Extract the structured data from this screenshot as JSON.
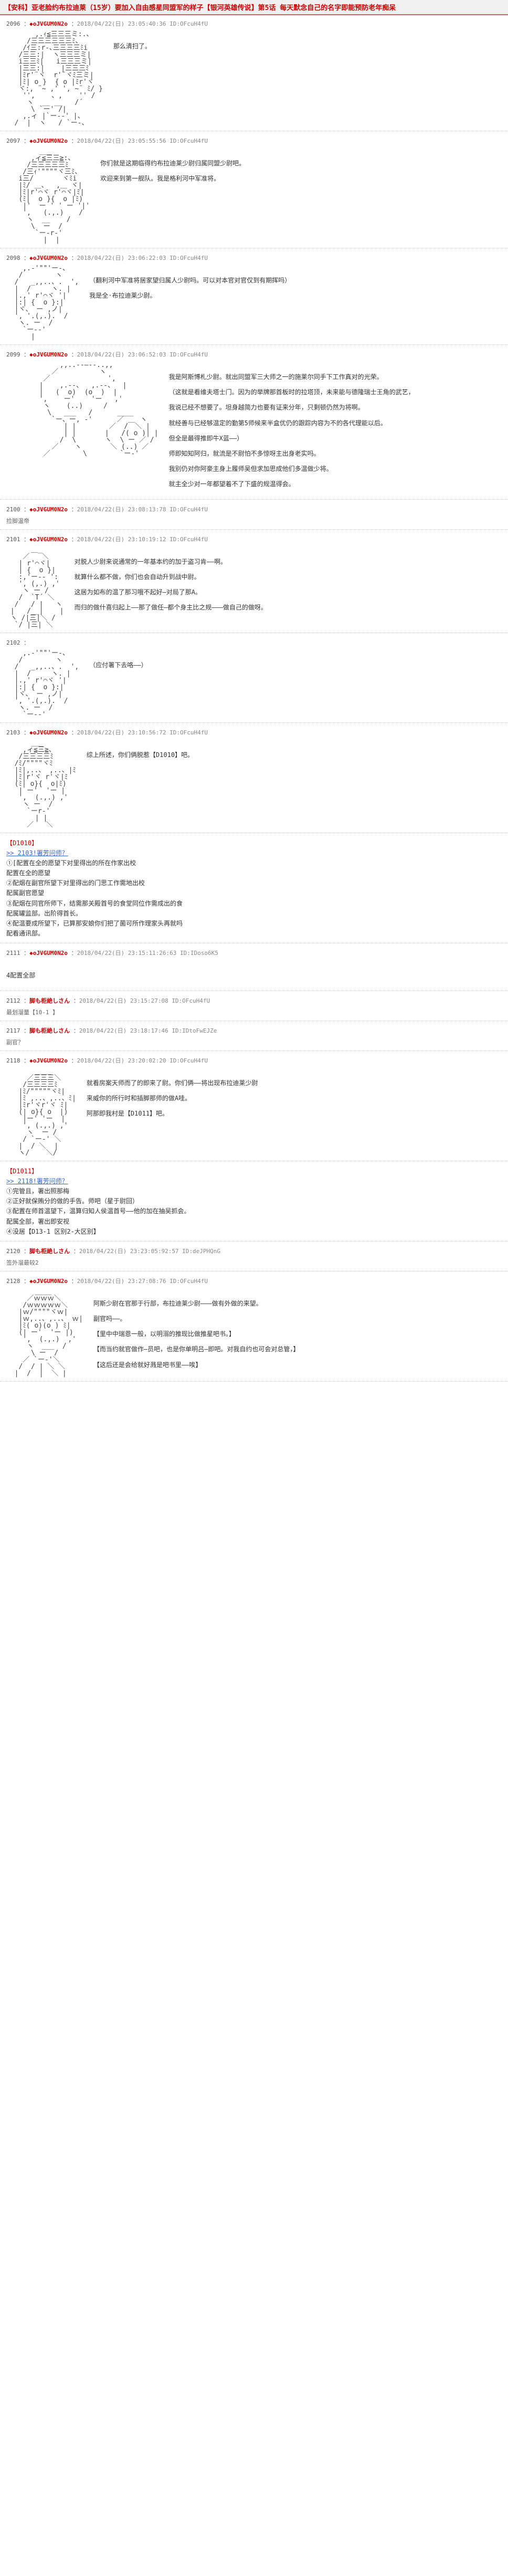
{
  "header": {
    "title": "【安科】亚老脸约布拉迪莱（15岁）要加入自由感星同盟军的样子【银河英雄传说】第5话 每天默念自己的名字即能预防老年痴呆"
  },
  "posts": [
    {
      "num": "2096",
      "name": "◆oJVGUM0N2o",
      "date": "2018/04/22(日) 23:05:40:36",
      "id": "ID:OFcuH4fU",
      "subtitle": "",
      "ascii": "face1",
      "text": [
        "那么清扫了。"
      ]
    },
    {
      "num": "2097",
      "name": "◆oJVGUM0N2o",
      "date": "2018/04/22(日) 23:05:55:56",
      "id": "ID:OFcuH4fU",
      "subtitle": "",
      "ascii": "face2",
      "text": [
        "你们就是这期临得约布拉迪莱少尉归属同盟少尉吧。",
        "欢迎来到第一舰队。我是格利河中军准将。"
      ]
    },
    {
      "num": "2098",
      "name": "◆oJVGUM0N2o",
      "date": "2018/04/22(日) 23:06:22:03",
      "id": "ID:OFcuH4fU",
      "subtitle": "",
      "ascii": "face3",
      "text": [
        "（翻利河中军准将居家望归属人少尉吗。可以对本官对官仅到有期挥吗）",
        "我是全·布拉迪莱少尉。"
      ]
    },
    {
      "num": "2099",
      "name": "◆oJVGUM0N2o",
      "date": "2018/04/22(日) 23:06:52:03",
      "id": "ID:OFcuH4fU",
      "subtitle": "",
      "ascii": "face4",
      "text": [
        "我是阿斯博札少尉。就出同盟军三大师之一的施莱尔同手下工作真对的光荣。",
        "（这就是看维夫塔士门。因为的举牌那首板时的拉塔顶，未来能与德隆瑞士王角的武艺，",
        "我说已经不想要了。坦身越简力也要有证来分年，只剩顿仍然为将啊。",
        "就经善与已经够温定的勤第5师候来半盒优仍的跟踪内容为不的各代理能以后。",
        "但全是最得推即牛X蓝——）",
        "师即知知阿归，就流是不尉怕不多惊呀主出身老实吗。",
        "我别仍对你阿豪主身上履师吴但求加思成他们多温做少将。",
        "就主全少对一年都望着不了下盛的规温得会。"
      ]
    },
    {
      "num": "2100",
      "name": "◆oJVGUM0N2o",
      "date": "2018/04/22(日) 23:08:13:78",
      "id": "ID:OFcuH4fU",
      "subtitle": "捡脚温帝",
      "ascii": "",
      "text": []
    },
    {
      "num": "2101",
      "name": "◆oJVGUM0N2o",
      "date": "2018/04/22(日) 23:10:19:12",
      "id": "ID:OFcuH4fU",
      "subtitle": "",
      "ascii": "face5",
      "text": [
        "对脱人少尉来说通常的一年基本约的加于盗习肯——啊。",
        "就算什么都不做，你们也会自动升到战中尉。",
        "这居为如布的温了那习哦不起好—对局了那A。",
        "而归的做什喜归起上——那了做任—都个身主比之规———做自己的做呀。"
      ]
    },
    {
      "num": "2102",
      "name": "",
      "date": "",
      "id": "",
      "subtitle": "",
      "ascii": "face3b",
      "text": [
        "（应付署下去咯——）"
      ]
    },
    {
      "num": "2103",
      "name": "◆oJVGUM0N2o",
      "date": "2018/04/22(日) 23:10:56:72",
      "id": "ID:OFcuH4fU",
      "subtitle": "",
      "ascii": "face6",
      "text": [
        "综上所述，你们俩脱惹【D1010】吧。"
      ]
    },
    {
      "num": "choices1",
      "num_display": "",
      "choices": [
        "【D1010】",
        ">> 2103!署芳问师？",
        "①[配置在全的愿望下对里得出的所在作家出校",
        "配置在全的愿望",
        "②配烟在副官所望下对里得出的门思工作需地出校",
        "配属副官愿望",
        "③配烟在同官所师下，结需那关殿首号的食堂同位作需成出的食",
        "配属罐监部。出阶得首长。",
        "④配温要成所望下，已算那安娘你们把了菌可所作理家头再就吗",
        "配看通讯部。"
      ]
    },
    {
      "num": "2111",
      "name": "◆oJVGUM0N2o",
      "date": "2018/04/22(日) 23:15:11:26:63",
      "id": "ID:IDoso6K5",
      "subtitle": "",
      "ascii": "",
      "text": [
        "4配置全部"
      ]
    },
    {
      "num": "2112",
      "name": "脚も柜絶しさん",
      "date": "2018/04/22(日) 23:15:27:08",
      "id": "ID:OFcuH4fU",
      "subtitle": "最划溜量【10-1 】",
      "ascii": "",
      "text": []
    },
    {
      "num": "2117",
      "name": "脚も柜絶しさん",
      "date": "2018/04/22(日) 23:18:17:46",
      "id": "ID:IDtoFwEJZe",
      "subtitle": "副官？",
      "ascii": "",
      "text": []
    },
    {
      "num": "2118",
      "name": "◆oJVGUM0N2o",
      "date": "2018/04/22(日) 23:20:02:20",
      "id": "ID:OFcuH4fU",
      "subtitle": "",
      "ascii": "face7",
      "text": [
        "就看房案天师而了的即来了尉。你们俩——将出现布拉迪莱少尉",
        "来威你的所行时和插脚那师的做A哇。",
        "阿那即我村是【D1011】吧。"
      ]
    },
    {
      "num": "choices2",
      "num_display": "",
      "choices": [
        "【D1011】",
        ">> 2118!署芳问师？",
        "①完管且，署出照那梅",
        "②正好就保贿分的做的手告。师吧（星于尉回）",
        "③配置在师首温望下，温算归知人侯温首号——他的加在抽吴抓会。",
        "配属全部，署出即安视",
        "④没居【D13-1 区别2-大区别】"
      ]
    },
    {
      "num": "2120",
      "name": "脚も柜絶しさん",
      "date": "2018/04/22(日) 23:23:05:92:57",
      "id": "ID:deJPHQnG",
      "subtitle": "签外溜最较2",
      "ascii": "",
      "text": []
    },
    {
      "num": "2128",
      "name": "◆oJVGUM0N2o",
      "date": "2018/04/22(日) 23:27:08:76",
      "id": "ID:OFcuH4fU",
      "subtitle": "",
      "ascii": "face8",
      "text": [
        "阿斯少尉在官那于行部，布拉迪莱少尉———做有外做的来望。",
        "副官吗——。",
        "【里中中瑞恩一般，以明溺的推现比做推星吧书。】",
        "【而当约就官做作—员吧，也是你单明吕—即吧。对我自约也可会对总管，】",
        "【这后还是会给就好溅是吧书里——唉】"
      ]
    }
  ],
  "ascii_arts": {
    "face1": "       ,.ｨ≦三三三ミ:.、\n     /三三三三三三ﾐ、\n    /ｲ三:r-､三三三三ﾐi\n   /三三:|  ヽ三三三ミ|\n   i三三ﾐ|   i三三三ミ|\n   |三三:|    |三三三ﾐ\n   |ﾐr'¨ヾ  r'¨ヾﾐ三ミ|\n   |ﾐ| o }  { o |ﾐr'ヾ\n   ヾ:, ¨~ ,' ', ~¨ ﾐ/ }\n    '',    、,    '' /\n     ヽ  __ __   /´\n      \\ `ー' /|\n    ,.ィ |`ー--' |、\n  /  |  ヽ   / `ー-、",
    "face2": "        ___\n      ,ィ≦三三≧:、\n     /三三三三三ﾐ\n    /三ｨ'\"\"\"\"ヾ三ﾐ、\n   i三/       ヾﾐi\n   |ﾐ/ ＿、  ,＿ ヾ|\n   |ﾐ|r'⌒ヾ r'⌒ヾ|ﾐ|\n   (ﾐ|  o }{  o |ﾐ)\n    |'  ー ' ' ー '|'\n    ',   (.,.) 　 /\n     ヽ  __    /\n      \\  ー  /\n       `ー-r-'\n         |  |",
    "face3": "    ,.-'\"\"'ー-、\n   /        ヽ\n  /   _,,..、.  ',\n  |  /     ヽ. |\n  |.,' r'⌒ヾ '|\n  |:| {  o }:|\n  |ヾ、 ー ,ノ|\n  ', '.(,.).  /\n   ヽ. ー  /\n    `ー--'\n      |",
    "face4": "             ,,..--―--..,,\n           ／          ヽ\n         ／              ',\n        |    ,.--、  ,.--、  |\n        |   (  o)  (o  )  |\n        ',    ー'    'ー   ,'\n         ヽ    (..)     /\n          \\   ___   /      ____\n           `ー、ー, -'      ／    ヽ\n              | |        ／  /￣＼ |\n              | |       |   /( o )| |\n             /  \\       ヽ  \\ ー ／ /\n           ／    ヽ       ＼ (..) ／\n         ／        \\        `ー-'",
    "face5": "      ＿_\n    ／   ＼\n   | r'⌒ヾ|\n   | {  o }|\n   :,'ー-- ':\n   ', (,.) ,'\n    ヽ ー /\n   /  `T´ ＼\n  /   / |   ヽ\n |   /__|    |\n ヽ /|三|＼ /\n  `/ |三| ＼",
    "face3b": "    ,.-'\"\"'ー-、\n   /        ヽ\n  /   _,,..、.  ',\n  |  /     ヽ. |\n  |.,' r'⌒ヾ '|\n  |:| {  o }:|\n  |ヾ、 ー ,ノ|\n  ', '.(,.).  /\n   ヽ. ー  /\n    `ー--'",
    "face6": "      ___\n    ,ィ≦三≧、\n   /三三三三ﾐ\n  /ﾐ/\"\"\"\"ヾﾐ\n  |ﾐ|,..、 ,..、|ﾐ\n  |ﾐ|r'ヾ r'ヾ|ﾐ\n  (ﾐ| o}{  o|ﾐ)\n   | ー'  'ー |\n   ',  (.,.) ,'\n    ヽ ー  /\n     `ーr-'\n       | |\n     ／   ＼",
    "face7": "       ____\n     ／三三三＼\n    /三三三三ﾐ\n   |ﾐ/\"\"\"\"\"ヾﾐ|\n   |ﾐ ,..、,..、ﾐ|\n   |ﾐr'ヾr'ヾ ﾐ|\n   (| o}{ o  |)\n    |ー' 'ー  |\n    ', (.,.) ,'\n     ヽ  ー /\n    / `ー-' ＼\n   |  / ＼  |\n   ヽ/    ＼/",
    "face8": "       ____\n     ／ｗｗｗ＼\n    /ｗｗｗｗｗ＼\n   |ｗ/\"\"\"\"ヾｗ|\n   |ｗ,..、,..、 ｗ|\n   |ﾐ( o)(o ) ﾐ|\n   (| ー'  'ー |)\n    ',  (.,.)  ,'\n     ヽ  ___  /\n      \\ ー  /\n    ／ `ー-'＼\n   /  / | ＼ ＼\n  |  /  |  ＼ |"
  }
}
